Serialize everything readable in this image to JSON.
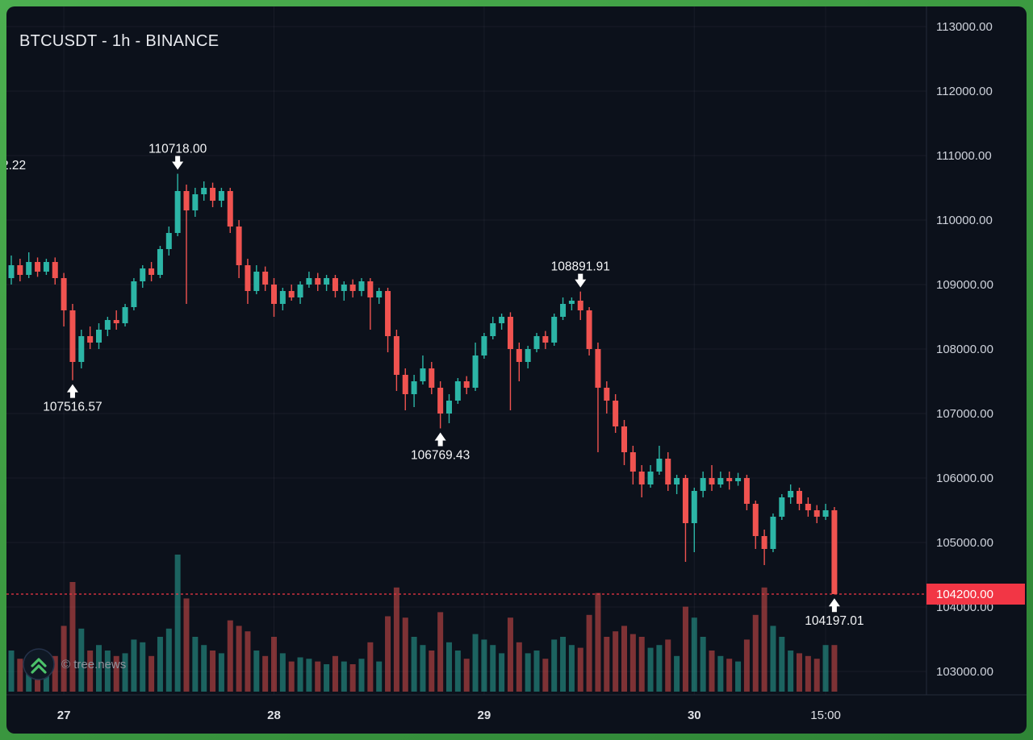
{
  "header": {
    "title": "BTCUSDT - 1h - BINANCE"
  },
  "watermark": {
    "label": "© tree.news",
    "icon": "double-chevron-up-icon"
  },
  "colors": {
    "background": "#0c111b",
    "frame_green": "#3c9a41",
    "up": "#2cb5a6",
    "down": "#f05350",
    "volume_up": "rgba(44,181,166,0.5)",
    "volume_down": "rgba(240,83,80,0.5)",
    "grid": "rgba(160,170,195,0.08)",
    "axis_text": "#ced2db",
    "separator": "#232a3a",
    "price_line": "#f23645",
    "annotation_text": "#f4f5f7",
    "arrow": "#ffffff"
  },
  "chart_data": {
    "type": "candlestick",
    "title": "BTCUSDT - 1h - BINANCE",
    "symbol": "BTCUSDT",
    "interval": "1h",
    "exchange": "BINANCE",
    "grid": true,
    "price_axis": {
      "min": 103000,
      "max": 113000,
      "step": 1000,
      "tick_labels": [
        "113000.00",
        "112000.00",
        "111000.00",
        "110000.00",
        "109000.00",
        "108000.00",
        "107000.00",
        "106000.00",
        "105000.00",
        "104000.00",
        "103000.00"
      ]
    },
    "time_axis": {
      "labels": [
        {
          "text": "27",
          "index": 6,
          "emphasis": true
        },
        {
          "text": "28",
          "index": 30,
          "emphasis": true
        },
        {
          "text": "29",
          "index": 54,
          "emphasis": true
        },
        {
          "text": "30",
          "index": 78,
          "emphasis": true
        },
        {
          "text": "15:00",
          "index": 93,
          "emphasis": false
        }
      ]
    },
    "current_price": {
      "value": 104200,
      "label": "104200.00"
    },
    "annotations": [
      {
        "text": "110718.00",
        "kind": "high",
        "index": 19,
        "price": 110718.0
      },
      {
        "text": "107516.57",
        "kind": "low",
        "index": 7,
        "price": 107516.57
      },
      {
        "text": "106769.43",
        "kind": "low",
        "index": 49,
        "price": 106769.43
      },
      {
        "text": "108891.91",
        "kind": "high",
        "index": 65,
        "price": 108891.91
      },
      {
        "text": "104197.01",
        "kind": "low",
        "index": 94,
        "price": 104197.01
      },
      {
        "text": "2.22",
        "kind": "clipped",
        "price": 110850,
        "x": -6
      }
    ],
    "columns": [
      "open",
      "high",
      "low",
      "close",
      "volume"
    ],
    "candles": [
      [
        109100,
        109450,
        109000,
        109300,
        30
      ],
      [
        109300,
        109400,
        109050,
        109150,
        24
      ],
      [
        109150,
        109500,
        109100,
        109350,
        27
      ],
      [
        109350,
        109420,
        109120,
        109200,
        20
      ],
      [
        109200,
        109400,
        109150,
        109350,
        22
      ],
      [
        109350,
        109420,
        109000,
        109100,
        26
      ],
      [
        109100,
        109180,
        108350,
        108600,
        48
      ],
      [
        108600,
        108700,
        107516.57,
        107800,
        80
      ],
      [
        107800,
        108300,
        107700,
        108200,
        46
      ],
      [
        108200,
        108350,
        108000,
        108100,
        30
      ],
      [
        108100,
        108400,
        108000,
        108300,
        34
      ],
      [
        108300,
        108500,
        108200,
        108450,
        30
      ],
      [
        108450,
        108600,
        108300,
        108400,
        26
      ],
      [
        108400,
        108700,
        108350,
        108650,
        28
      ],
      [
        108650,
        109100,
        108600,
        109050,
        38
      ],
      [
        109050,
        109300,
        108950,
        109250,
        36
      ],
      [
        109250,
        109350,
        109050,
        109150,
        26
      ],
      [
        109150,
        109600,
        109100,
        109550,
        40
      ],
      [
        109550,
        109900,
        109450,
        109800,
        46
      ],
      [
        109800,
        110718,
        109750,
        110450,
        100
      ],
      [
        110450,
        110550,
        108700,
        110150,
        68
      ],
      [
        110150,
        110500,
        110050,
        110400,
        40
      ],
      [
        110400,
        110600,
        110300,
        110500,
        34
      ],
      [
        110500,
        110580,
        110200,
        110300,
        30
      ],
      [
        110300,
        110500,
        110200,
        110450,
        28
      ],
      [
        110450,
        110500,
        109800,
        109900,
        52
      ],
      [
        109900,
        110000,
        109100,
        109300,
        48
      ],
      [
        109300,
        109400,
        108700,
        108900,
        44
      ],
      [
        108900,
        109300,
        108850,
        109200,
        30
      ],
      [
        109200,
        109280,
        108900,
        109000,
        26
      ],
      [
        109000,
        109100,
        108500,
        108700,
        40
      ],
      [
        108700,
        108950,
        108600,
        108900,
        28
      ],
      [
        108900,
        109000,
        108750,
        108800,
        22
      ],
      [
        108800,
        109050,
        108700,
        109000,
        25
      ],
      [
        109000,
        109200,
        108950,
        109100,
        24
      ],
      [
        109100,
        109180,
        108900,
        109000,
        22
      ],
      [
        109000,
        109150,
        108900,
        109100,
        20
      ],
      [
        109100,
        109150,
        108800,
        108900,
        26
      ],
      [
        108900,
        109050,
        108750,
        109000,
        22
      ],
      [
        109000,
        109080,
        108800,
        108900,
        20
      ],
      [
        108900,
        109100,
        108820,
        109050,
        24
      ],
      [
        109050,
        109100,
        108300,
        108800,
        36
      ],
      [
        108800,
        108950,
        108700,
        108900,
        22
      ],
      [
        108900,
        108950,
        107950,
        108200,
        55
      ],
      [
        108200,
        108300,
        107350,
        107600,
        76
      ],
      [
        107600,
        107700,
        107050,
        107300,
        54
      ],
      [
        107300,
        107600,
        107100,
        107500,
        40
      ],
      [
        107500,
        107900,
        107450,
        107700,
        34
      ],
      [
        107700,
        107800,
        107300,
        107400,
        30
      ],
      [
        107400,
        107500,
        106769.43,
        107000,
        58
      ],
      [
        107000,
        107300,
        106850,
        107200,
        36
      ],
      [
        107200,
        107550,
        107150,
        107500,
        30
      ],
      [
        107500,
        107580,
        107300,
        107400,
        24
      ],
      [
        107400,
        108100,
        107350,
        107900,
        42
      ],
      [
        107900,
        108250,
        107850,
        108200,
        38
      ],
      [
        108200,
        108500,
        108150,
        108400,
        34
      ],
      [
        108400,
        108550,
        108300,
        108500,
        28
      ],
      [
        108500,
        108570,
        107050,
        108000,
        54
      ],
      [
        108000,
        108100,
        107500,
        107800,
        36
      ],
      [
        107800,
        108050,
        107700,
        108000,
        28
      ],
      [
        108000,
        108250,
        107950,
        108200,
        30
      ],
      [
        108200,
        108280,
        108000,
        108100,
        24
      ],
      [
        108100,
        108550,
        108050,
        108500,
        38
      ],
      [
        108500,
        108800,
        108450,
        108700,
        40
      ],
      [
        108700,
        108800,
        108600,
        108750,
        34
      ],
      [
        108750,
        108891.91,
        108450,
        108600,
        32
      ],
      [
        108600,
        108650,
        107900,
        108000,
        56
      ],
      [
        108000,
        108100,
        106400,
        107400,
        72
      ],
      [
        107400,
        107500,
        107000,
        107200,
        40
      ],
      [
        107200,
        107300,
        106700,
        106800,
        44
      ],
      [
        106800,
        106900,
        106200,
        106400,
        48
      ],
      [
        106400,
        106500,
        105900,
        106100,
        42
      ],
      [
        106100,
        106200,
        105700,
        105900,
        40
      ],
      [
        105900,
        106200,
        105850,
        106100,
        32
      ],
      [
        106100,
        106500,
        106050,
        106300,
        34
      ],
      [
        106300,
        106400,
        105800,
        105900,
        38
      ],
      [
        105900,
        106050,
        105750,
        106000,
        26
      ],
      [
        106000,
        106050,
        104700,
        105300,
        62
      ],
      [
        105300,
        105850,
        104850,
        105800,
        54
      ],
      [
        105800,
        106100,
        105700,
        106000,
        40
      ],
      [
        106000,
        106200,
        105800,
        105900,
        30
      ],
      [
        105900,
        106100,
        105850,
        106000,
        26
      ],
      [
        106000,
        106100,
        105820,
        105950,
        24
      ],
      [
        105950,
        106080,
        105880,
        106000,
        22
      ],
      [
        106000,
        106050,
        105500,
        105600,
        38
      ],
      [
        105600,
        105650,
        104900,
        105100,
        56
      ],
      [
        105100,
        105200,
        104650,
        104900,
        76
      ],
      [
        104900,
        105450,
        104850,
        105400,
        48
      ],
      [
        105400,
        105750,
        105350,
        105700,
        40
      ],
      [
        105700,
        105900,
        105600,
        105800,
        30
      ],
      [
        105800,
        105850,
        105500,
        105600,
        28
      ],
      [
        105600,
        105700,
        105400,
        105500,
        26
      ],
      [
        105500,
        105580,
        105300,
        105400,
        24
      ],
      [
        105400,
        105600,
        105350,
        105500,
        34
      ],
      [
        105500,
        105550,
        104197.01,
        104200,
        34
      ]
    ]
  }
}
